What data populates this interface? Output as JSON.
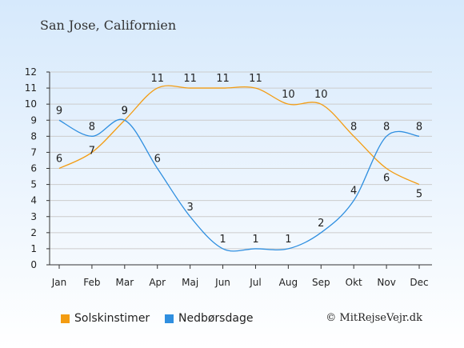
{
  "title": "San Jose, Californien",
  "credit": "© MitRejseVejr.dk",
  "colors": {
    "sun": "#f39c12",
    "rain": "#2f8fe0",
    "grid": "#cccccc",
    "axis": "#333333"
  },
  "chart_data": {
    "type": "line",
    "categories": [
      "Jan",
      "Feb",
      "Mar",
      "Apr",
      "Maj",
      "Jun",
      "Jul",
      "Aug",
      "Sep",
      "Okt",
      "Nov",
      "Dec"
    ],
    "ylim": [
      0,
      12
    ],
    "yticks": [
      0,
      1,
      2,
      3,
      4,
      5,
      6,
      7,
      8,
      9,
      10,
      11,
      12
    ],
    "grid": true,
    "legend_position": "bottom-left",
    "series": [
      {
        "name": "Solskinstimer",
        "color": "#f39c12",
        "values": [
          6,
          7,
          9,
          11,
          11,
          11,
          11,
          10,
          10,
          8,
          6,
          5
        ]
      },
      {
        "name": "Nedbørsdage",
        "color": "#2f8fe0",
        "values": [
          9,
          8,
          9,
          6,
          3,
          1,
          1,
          1,
          2,
          4,
          8,
          8
        ]
      }
    ]
  }
}
